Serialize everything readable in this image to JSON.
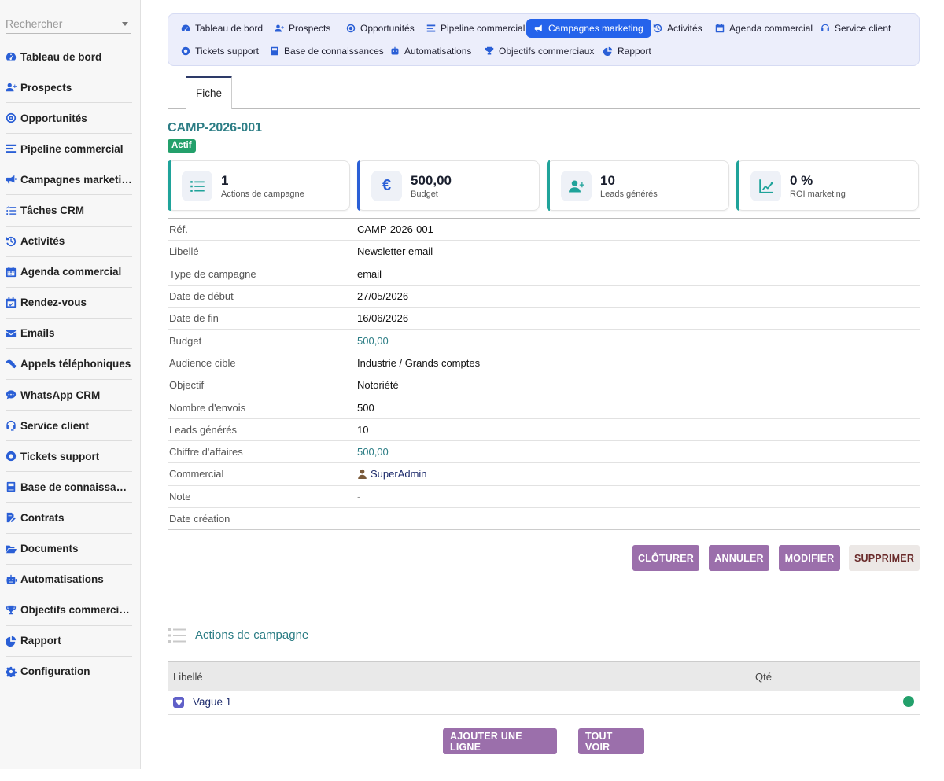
{
  "search": {
    "placeholder": "Rechercher"
  },
  "sidebar": {
    "items": [
      {
        "label": "Tableau de bord",
        "icon": "dashboard-icon"
      },
      {
        "label": "Prospects",
        "icon": "user-plus-icon"
      },
      {
        "label": "Opportunités",
        "icon": "target-icon"
      },
      {
        "label": "Pipeline commercial",
        "icon": "pipeline-icon"
      },
      {
        "label": "Campagnes marketing",
        "icon": "megaphone-icon"
      },
      {
        "label": "Tâches CRM",
        "icon": "task-list-icon"
      },
      {
        "label": "Activités",
        "icon": "history-icon"
      },
      {
        "label": "Agenda commercial",
        "icon": "calendar-icon"
      },
      {
        "label": "Rendez-vous",
        "icon": "calendar-check-icon"
      },
      {
        "label": "Emails",
        "icon": "envelope-icon"
      },
      {
        "label": "Appels téléphoniques",
        "icon": "phone-icon"
      },
      {
        "label": "WhatsApp CRM",
        "icon": "chat-icon"
      },
      {
        "label": "Service client",
        "icon": "headset-icon"
      },
      {
        "label": "Tickets support",
        "icon": "lifebuoy-icon"
      },
      {
        "label": "Base de connaissances",
        "icon": "book-icon"
      },
      {
        "label": "Contrats",
        "icon": "contract-icon"
      },
      {
        "label": "Documents",
        "icon": "folder-open-icon"
      },
      {
        "label": "Automatisations",
        "icon": "robot-icon"
      },
      {
        "label": "Objectifs commerciaux",
        "icon": "trophy-icon"
      },
      {
        "label": "Rapport",
        "icon": "pie-chart-icon"
      },
      {
        "label": "Configuration",
        "icon": "gear-icon"
      }
    ]
  },
  "topnav": {
    "tabs": [
      {
        "label": "Tableau de bord",
        "icon": "dashboard-icon"
      },
      {
        "label": "Prospects",
        "icon": "user-plus-icon"
      },
      {
        "label": "Opportunités",
        "icon": "target-icon"
      },
      {
        "label": "Pipeline commercial",
        "icon": "pipeline-icon"
      },
      {
        "label": "Campagnes marketing",
        "icon": "megaphone-icon",
        "active": true
      },
      {
        "label": "Activités",
        "icon": "history-icon"
      },
      {
        "label": "Agenda commercial",
        "icon": "calendar-icon"
      },
      {
        "label": "Service client",
        "icon": "headset-icon"
      },
      {
        "label": "Tickets support",
        "icon": "lifebuoy-icon"
      },
      {
        "label": "Base de connaissances",
        "icon": "book-icon"
      },
      {
        "label": "Automatisations",
        "icon": "robot-icon"
      },
      {
        "label": "Objectifs commerciaux",
        "icon": "trophy-icon"
      },
      {
        "label": "Rapport",
        "icon": "pie-chart-icon"
      }
    ]
  },
  "card": {
    "tab": "Fiche",
    "ref": "CAMP-2026-001",
    "status": "Actif",
    "status_color": "#23a06b"
  },
  "kpis": [
    {
      "value": "1",
      "label": "Actions de campagne",
      "icon": "list-icon",
      "accent": "#1fa39a"
    },
    {
      "value": "500,00",
      "label": "Budget",
      "icon": "euro-icon",
      "accent": "#2a5fd6"
    },
    {
      "value": "10",
      "label": "Leads générés",
      "icon": "user-plus-icon",
      "accent": "#1fa39a"
    },
    {
      "value": "0 %",
      "label": "ROI marketing",
      "icon": "chart-line-icon",
      "accent": "#1fa39a"
    }
  ],
  "fields": [
    {
      "label": "Réf.",
      "value": "CAMP-2026-001"
    },
    {
      "label": "Libellé",
      "value": "Newsletter email"
    },
    {
      "label": "Type de campagne",
      "value": "email"
    },
    {
      "label": "Date de début",
      "value": "27/05/2026"
    },
    {
      "label": "Date de fin",
      "value": "16/06/2026"
    },
    {
      "label": "Budget",
      "value": "500,00"
    },
    {
      "label": "Audience cible",
      "value": "Industrie / Grands comptes"
    },
    {
      "label": "Objectif",
      "value": "Notoriété"
    },
    {
      "label": "Nombre d'envois",
      "value": "500"
    },
    {
      "label": "Leads générés",
      "value": "10"
    },
    {
      "label": "Chiffre d'affaires",
      "value": "500,00"
    },
    {
      "label": "Commercial",
      "value": "SuperAdmin"
    },
    {
      "label": "Note",
      "value": "-"
    },
    {
      "label": "Date création",
      "value": ""
    }
  ],
  "actions": {
    "close": "CLÔTURER",
    "cancel": "ANNULER",
    "edit": "MODIFIER",
    "delete": "SUPPRIMER"
  },
  "lines_section": {
    "title": "Actions de campagne",
    "col_label": "Libellé",
    "col_qty": "Qté",
    "rows": [
      {
        "label": "Vague 1",
        "status_color": "#23a06b"
      }
    ],
    "add_button": "AJOUTER UNE LIGNE",
    "view_all_button": "TOUT VOIR"
  }
}
